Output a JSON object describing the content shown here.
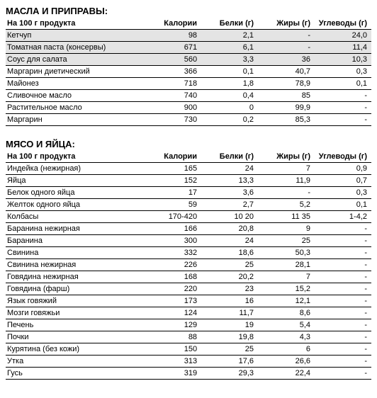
{
  "sections": [
    {
      "title": "МАСЛА И ПРИПРАВЫ:",
      "columns": [
        "На 100 г продукта",
        "Калории",
        "Белки (г)",
        "Жиры (г)",
        "Углеводы (г)"
      ],
      "rows": [
        {
          "cells": [
            "Кетчуп",
            "98",
            "2,1",
            "-",
            "24,0"
          ],
          "highlight": true
        },
        {
          "cells": [
            "Томатная паста (консервы)",
            "671",
            "6,1",
            "-",
            "11,4"
          ],
          "highlight": true
        },
        {
          "cells": [
            "Соус для салата",
            "560",
            "3,3",
            "36",
            "10,3"
          ],
          "highlight": true
        },
        {
          "cells": [
            "Маргарин диетический",
            "366",
            "0,1",
            "40,7",
            "0,3"
          ],
          "highlight": false
        },
        {
          "cells": [
            "Майонез",
            "718",
            "1,8",
            "78,9",
            "0,1"
          ],
          "highlight": false
        },
        {
          "cells": [
            "Сливочное масло",
            "740",
            "0,4",
            "85",
            "-"
          ],
          "highlight": false
        },
        {
          "cells": [
            "Растительное масло",
            "900",
            "0",
            "99,9",
            "-"
          ],
          "highlight": false
        },
        {
          "cells": [
            "Маргарин",
            "730",
            "0,2",
            "85,3",
            "-"
          ],
          "highlight": false
        }
      ]
    },
    {
      "title": "МЯСО И ЯЙЦА:",
      "columns": [
        "На 100 г продукта",
        "Калории",
        "Белки (г)",
        "Жиры (г)",
        "Углеводы (г)"
      ],
      "rows": [
        {
          "cells": [
            "Индейка (нежирная)",
            "165",
            "24",
            "7",
            "0,9"
          ],
          "highlight": false
        },
        {
          "cells": [
            "Яйца",
            "152",
            "13,3",
            "11,9",
            "0,7"
          ],
          "highlight": false
        },
        {
          "cells": [
            "Белок одного яйца",
            "17",
            "3,6",
            "-",
            "0,3"
          ],
          "highlight": false
        },
        {
          "cells": [
            "Желток одного яйца",
            "59",
            "2,7",
            "5,2",
            "0,1"
          ],
          "highlight": false
        },
        {
          "cells": [
            "Колбасы",
            "170-420",
            "10 20",
            "11 35",
            "1-4,2"
          ],
          "highlight": false
        },
        {
          "cells": [
            "Баранина нежирная",
            "166",
            "20,8",
            "9",
            "-"
          ],
          "highlight": false
        },
        {
          "cells": [
            "Баранина",
            "300",
            "24",
            "25",
            "-"
          ],
          "highlight": false
        },
        {
          "cells": [
            "Свинина",
            "332",
            "18,6",
            "50,3",
            "-"
          ],
          "highlight": false
        },
        {
          "cells": [
            "Свинина нежирная",
            "226",
            "25",
            "28,1",
            "-"
          ],
          "highlight": false
        },
        {
          "cells": [
            "Говядина нежирная",
            "168",
            "20,2",
            "7",
            "-"
          ],
          "highlight": false
        },
        {
          "cells": [
            "Говядина (фарш)",
            "220",
            "23",
            "15,2",
            "-"
          ],
          "highlight": false
        },
        {
          "cells": [
            "Язык говяжий",
            "173",
            "16",
            "12,1",
            "-"
          ],
          "highlight": false
        },
        {
          "cells": [
            "Мозги говяжьи",
            "124",
            "11,7",
            "8,6",
            "-"
          ],
          "highlight": false
        },
        {
          "cells": [
            "Печень",
            "129",
            "19",
            "5,4",
            "-"
          ],
          "highlight": false
        },
        {
          "cells": [
            "Почки",
            "88",
            "19,8",
            "4,3",
            "-"
          ],
          "highlight": false
        },
        {
          "cells": [
            "Курятина (без кожи)",
            "150",
            "25",
            "6",
            "-"
          ],
          "highlight": false
        },
        {
          "cells": [
            "Утка",
            "313",
            "17,6",
            "26,6",
            "-"
          ],
          "highlight": false
        },
        {
          "cells": [
            "Гусь",
            "319",
            "29,3",
            "22,4",
            "-"
          ],
          "highlight": false
        }
      ]
    }
  ]
}
